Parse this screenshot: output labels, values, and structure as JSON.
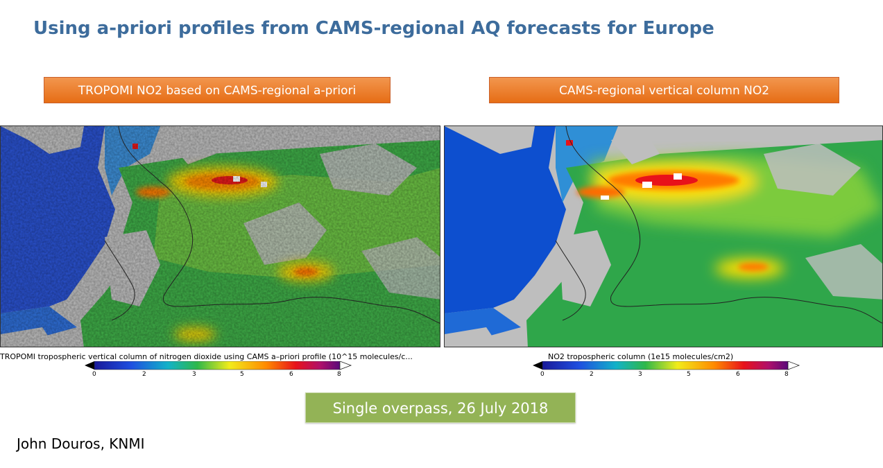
{
  "slide": {
    "title": "Using a-priori profiles from CAMS-regional AQ forecasts for Europe",
    "badge": "Single overpass, 26 July 2018",
    "author": "John Douros, KNMI"
  },
  "left_panel": {
    "label": "TROPOMI NO2 based on CAMS-regional a-priori",
    "caption": "TROPOMI tropospheric vertical column of nitrogen dioxide using CAMS a–priori profile (10^15 molecules/c...",
    "ticks": [
      "0",
      "2",
      "3",
      "5",
      "6",
      "8"
    ]
  },
  "right_panel": {
    "label": "CAMS-regional vertical column NO2",
    "caption": "NO2 tropospheric column (1e15 molecules/cm2)",
    "ticks": [
      "0",
      "2",
      "3",
      "5",
      "6",
      "8"
    ]
  },
  "colors": {
    "title": "#3d6c9c",
    "label_orange": "#e8772a",
    "badge_green": "#93b356",
    "no_data_gray": "#bebebe"
  }
}
